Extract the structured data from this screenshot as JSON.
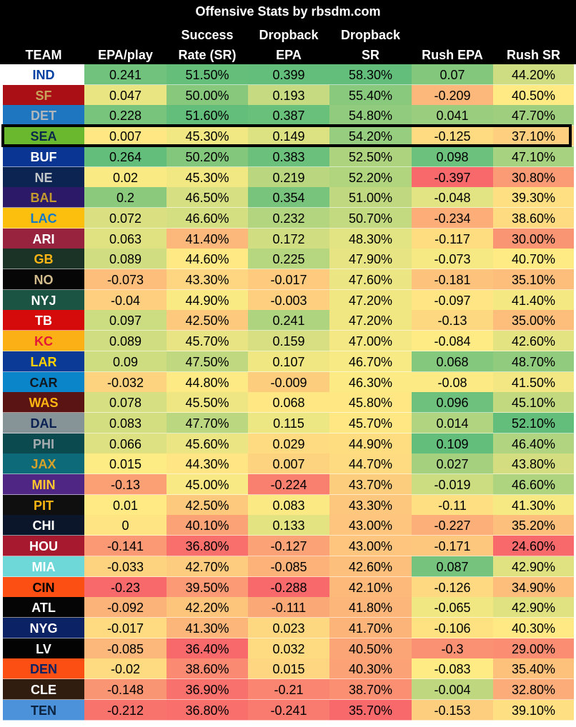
{
  "chart_data": {
    "type": "table",
    "title": "Offensive Stats by rbsdm.com",
    "columns": [
      {
        "key": "team",
        "label": [
          "TEAM"
        ]
      },
      {
        "key": "epa_play",
        "label": [
          "EPA/play"
        ],
        "scale": true
      },
      {
        "key": "success_rate",
        "label": [
          "Success",
          "Rate (SR)"
        ],
        "scale": true
      },
      {
        "key": "dropback_epa",
        "label": [
          "Dropback",
          "EPA"
        ],
        "scale": true
      },
      {
        "key": "dropback_sr",
        "label": [
          "Dropback",
          "SR"
        ],
        "scale": true
      },
      {
        "key": "rush_epa",
        "label": [
          "Rush EPA"
        ],
        "scale": true
      },
      {
        "key": "rush_sr",
        "label": [
          "Rush SR"
        ],
        "scale": true
      }
    ],
    "highlighted_team": "SEA",
    "color_scale": {
      "low": "#f8696b",
      "mid": "#ffeb84",
      "high": "#63be7b"
    },
    "rows": [
      {
        "team": "IND",
        "bg": "#ffffff",
        "fg": "#013fa0",
        "values": [
          "0.241",
          "51.50%",
          "0.399",
          "58.30%",
          "0.07",
          "44.20%"
        ]
      },
      {
        "team": "SF",
        "bg": "#a90f14",
        "fg": "#c8a45c",
        "values": [
          "0.047",
          "50.00%",
          "0.193",
          "55.40%",
          "-0.209",
          "40.50%"
        ]
      },
      {
        "team": "DET",
        "bg": "#1d76bf",
        "fg": "#b0b7bc",
        "values": [
          "0.228",
          "51.60%",
          "0.387",
          "54.80%",
          "0.041",
          "47.70%"
        ]
      },
      {
        "team": "SEA",
        "bg": "#6ab82e",
        "fg": "#0b2a4a",
        "values": [
          "0.007",
          "45.30%",
          "0.149",
          "54.20%",
          "-0.125",
          "37.10%"
        ]
      },
      {
        "team": "BUF",
        "bg": "#0a3592",
        "fg": "#ffffff",
        "values": [
          "0.264",
          "50.20%",
          "0.383",
          "52.50%",
          "0.098",
          "47.10%"
        ]
      },
      {
        "team": "NE",
        "bg": "#0b2452",
        "fg": "#c1c6c8",
        "values": [
          "0.02",
          "45.30%",
          "0.219",
          "52.20%",
          "-0.397",
          "30.80%"
        ]
      },
      {
        "team": "BAL",
        "bg": "#2c1a68",
        "fg": "#c49a2f",
        "values": [
          "0.2",
          "46.50%",
          "0.354",
          "51.00%",
          "-0.048",
          "39.30%"
        ]
      },
      {
        "team": "LAC",
        "bg": "#fdbf0d",
        "fg": "#1579c6",
        "values": [
          "0.072",
          "46.60%",
          "0.232",
          "50.70%",
          "-0.234",
          "38.60%"
        ]
      },
      {
        "team": "ARI",
        "bg": "#97233f",
        "fg": "#ffffff",
        "values": [
          "0.063",
          "41.40%",
          "0.172",
          "48.30%",
          "-0.117",
          "30.00%"
        ]
      },
      {
        "team": "GB",
        "bg": "#1b3226",
        "fg": "#fdb614",
        "values": [
          "0.089",
          "44.60%",
          "0.225",
          "47.90%",
          "-0.073",
          "40.70%"
        ]
      },
      {
        "team": "NO",
        "bg": "#060606",
        "fg": "#d3bc8d",
        "values": [
          "-0.073",
          "43.30%",
          "-0.017",
          "47.60%",
          "-0.181",
          "35.10%"
        ]
      },
      {
        "team": "NYJ",
        "bg": "#1b5443",
        "fg": "#ffffff",
        "values": [
          "-0.04",
          "44.90%",
          "-0.003",
          "47.20%",
          "-0.097",
          "41.40%"
        ]
      },
      {
        "team": "TB",
        "bg": "#d50a0a",
        "fg": "#ffffff",
        "values": [
          "0.097",
          "42.50%",
          "0.241",
          "47.20%",
          "-0.13",
          "35.00%"
        ]
      },
      {
        "team": "KC",
        "bg": "#fbb116",
        "fg": "#e31837",
        "values": [
          "0.089",
          "45.70%",
          "0.159",
          "47.00%",
          "-0.084",
          "42.60%"
        ]
      },
      {
        "team": "LAR",
        "bg": "#0b3a96",
        "fg": "#ffd100",
        "values": [
          "0.09",
          "47.50%",
          "0.107",
          "46.70%",
          "0.068",
          "48.70%"
        ]
      },
      {
        "team": "CAR",
        "bg": "#0b85ca",
        "fg": "#101820",
        "values": [
          "-0.032",
          "44.80%",
          "-0.009",
          "46.30%",
          "-0.08",
          "41.50%"
        ]
      },
      {
        "team": "WAS",
        "bg": "#5a1414",
        "fg": "#ffb612",
        "values": [
          "0.078",
          "45.50%",
          "0.068",
          "45.80%",
          "0.096",
          "45.10%"
        ]
      },
      {
        "team": "DAL",
        "bg": "#869397",
        "fg": "#0a2152",
        "values": [
          "0.083",
          "47.70%",
          "0.115",
          "45.70%",
          "0.014",
          "52.10%"
        ]
      },
      {
        "team": "PHI",
        "bg": "#0b4b50",
        "fg": "#a5acaf",
        "values": [
          "0.066",
          "45.60%",
          "0.029",
          "44.90%",
          "0.109",
          "46.40%"
        ]
      },
      {
        "team": "JAX",
        "bg": "#0c6a79",
        "fg": "#d7a22a",
        "values": [
          "0.015",
          "44.30%",
          "0.007",
          "44.70%",
          "0.027",
          "43.80%"
        ]
      },
      {
        "team": "MIN",
        "bg": "#4f2683",
        "fg": "#ffc62f",
        "values": [
          "-0.13",
          "45.00%",
          "-0.224",
          "43.70%",
          "-0.019",
          "46.60%"
        ]
      },
      {
        "team": "PIT",
        "bg": "#0f0f0f",
        "fg": "#ffb612",
        "values": [
          "0.01",
          "42.50%",
          "0.083",
          "43.30%",
          "-0.11",
          "41.30%"
        ]
      },
      {
        "team": "CHI",
        "bg": "#0b162a",
        "fg": "#ffffff",
        "values": [
          "0",
          "40.10%",
          "0.133",
          "43.00%",
          "-0.227",
          "35.20%"
        ]
      },
      {
        "team": "HOU",
        "bg": "#a6192e",
        "fg": "#ffffff",
        "values": [
          "-0.141",
          "36.80%",
          "-0.127",
          "43.00%",
          "-0.171",
          "24.60%"
        ]
      },
      {
        "team": "MIA",
        "bg": "#6ed8d8",
        "fg": "#ffffff",
        "values": [
          "-0.033",
          "42.70%",
          "-0.085",
          "42.60%",
          "0.087",
          "42.90%"
        ]
      },
      {
        "team": "CIN",
        "bg": "#fb4f14",
        "fg": "#000000",
        "values": [
          "-0.23",
          "39.50%",
          "-0.288",
          "42.10%",
          "-0.126",
          "34.90%"
        ]
      },
      {
        "team": "ATL",
        "bg": "#050505",
        "fg": "#ffffff",
        "values": [
          "-0.092",
          "42.20%",
          "-0.111",
          "41.80%",
          "-0.065",
          "42.90%"
        ]
      },
      {
        "team": "NYG",
        "bg": "#0b2265",
        "fg": "#ffffff",
        "values": [
          "-0.017",
          "41.30%",
          "0.023",
          "41.70%",
          "-0.106",
          "40.30%"
        ]
      },
      {
        "team": "LV",
        "bg": "#030303",
        "fg": "#ffffff",
        "values": [
          "-0.085",
          "36.40%",
          "0.032",
          "40.50%",
          "-0.3",
          "29.00%"
        ]
      },
      {
        "team": "DEN",
        "bg": "#fb4f14",
        "fg": "#0b2265",
        "values": [
          "-0.02",
          "38.60%",
          "0.015",
          "40.30%",
          "-0.083",
          "35.40%"
        ]
      },
      {
        "team": "CLE",
        "bg": "#311d0f",
        "fg": "#ffffff",
        "values": [
          "-0.148",
          "36.90%",
          "-0.21",
          "38.70%",
          "-0.004",
          "32.80%"
        ]
      },
      {
        "team": "TEN",
        "bg": "#4b92db",
        "fg": "#0c2340",
        "values": [
          "-0.212",
          "36.80%",
          "-0.241",
          "35.70%",
          "-0.153",
          "39.10%"
        ]
      }
    ]
  }
}
